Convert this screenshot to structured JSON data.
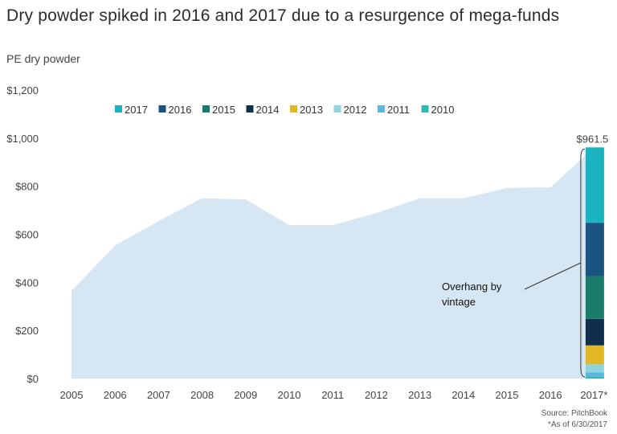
{
  "title": "Dry powder spiked in 2016 and 2017 due to a resurgence of mega-funds",
  "subtitle": "PE dry powder",
  "source": "Source: PitchBook",
  "footnote": "*As of 6/30/2017",
  "colors": {
    "area": "#d6e7f3",
    "2017": "#1bb3bf",
    "2016": "#1b5480",
    "2015": "#1b7b6b",
    "2014": "#0f2f4d",
    "2013": "#e2b827",
    "2012": "#8fd3dc",
    "2011": "#5ab8e0",
    "2010": "#33b9b3"
  },
  "chart_data": {
    "type": "area",
    "x": [
      "2005",
      "2006",
      "2007",
      "2008",
      "2009",
      "2010",
      "2011",
      "2012",
      "2013",
      "2014",
      "2015",
      "2016",
      "2017*"
    ],
    "area_values": [
      365,
      553,
      655,
      750,
      745,
      638,
      638,
      688,
      750,
      750,
      793,
      795,
      961.5
    ],
    "ylim": [
      0,
      1200
    ],
    "yticks": [
      "$0",
      "$200",
      "$400",
      "$600",
      "$800",
      "$1,000",
      "$1,200"
    ],
    "ytick_values": [
      0,
      200,
      400,
      600,
      800,
      1000,
      1200
    ],
    "stacked_bar": {
      "category": "2017*",
      "total_label": "$961.5",
      "segments": [
        {
          "name": "2010",
          "value": 8
        },
        {
          "name": "2011",
          "value": 17
        },
        {
          "name": "2012",
          "value": 35
        },
        {
          "name": "2013",
          "value": 78
        },
        {
          "name": "2014",
          "value": 110
        },
        {
          "name": "2015",
          "value": 178
        },
        {
          "name": "2016",
          "value": 222
        },
        {
          "name": "2017",
          "value": 313.5
        }
      ]
    },
    "legend": [
      "2017",
      "2016",
      "2015",
      "2014",
      "2013",
      "2012",
      "2011",
      "2010"
    ],
    "annotation": [
      "Overhang by",
      "vintage"
    ]
  }
}
